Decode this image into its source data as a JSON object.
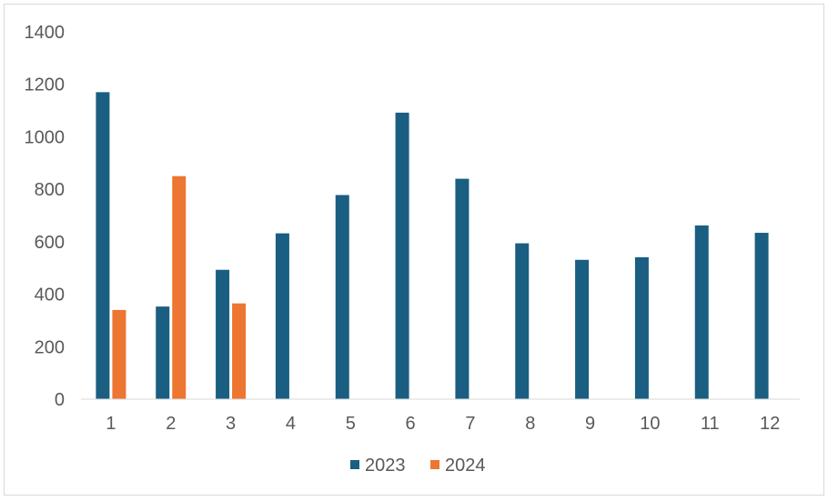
{
  "chart_data": {
    "type": "bar",
    "categories": [
      "1",
      "2",
      "3",
      "4",
      "5",
      "6",
      "7",
      "8",
      "9",
      "10",
      "11",
      "12"
    ],
    "series": [
      {
        "name": "2023",
        "color": "#1a5e82",
        "values": [
          1170,
          353,
          493,
          632,
          778,
          1092,
          840,
          594,
          531,
          541,
          662,
          634
        ]
      },
      {
        "name": "2024",
        "color": "#ec7632",
        "values": [
          340,
          850,
          365,
          null,
          null,
          null,
          null,
          null,
          null,
          null,
          null,
          null
        ]
      }
    ],
    "ylim": [
      0,
      1400
    ],
    "yticks": [
      0,
      200,
      400,
      600,
      800,
      1000,
      1200,
      1400
    ],
    "grid": false,
    "legend_position": "bottom"
  }
}
